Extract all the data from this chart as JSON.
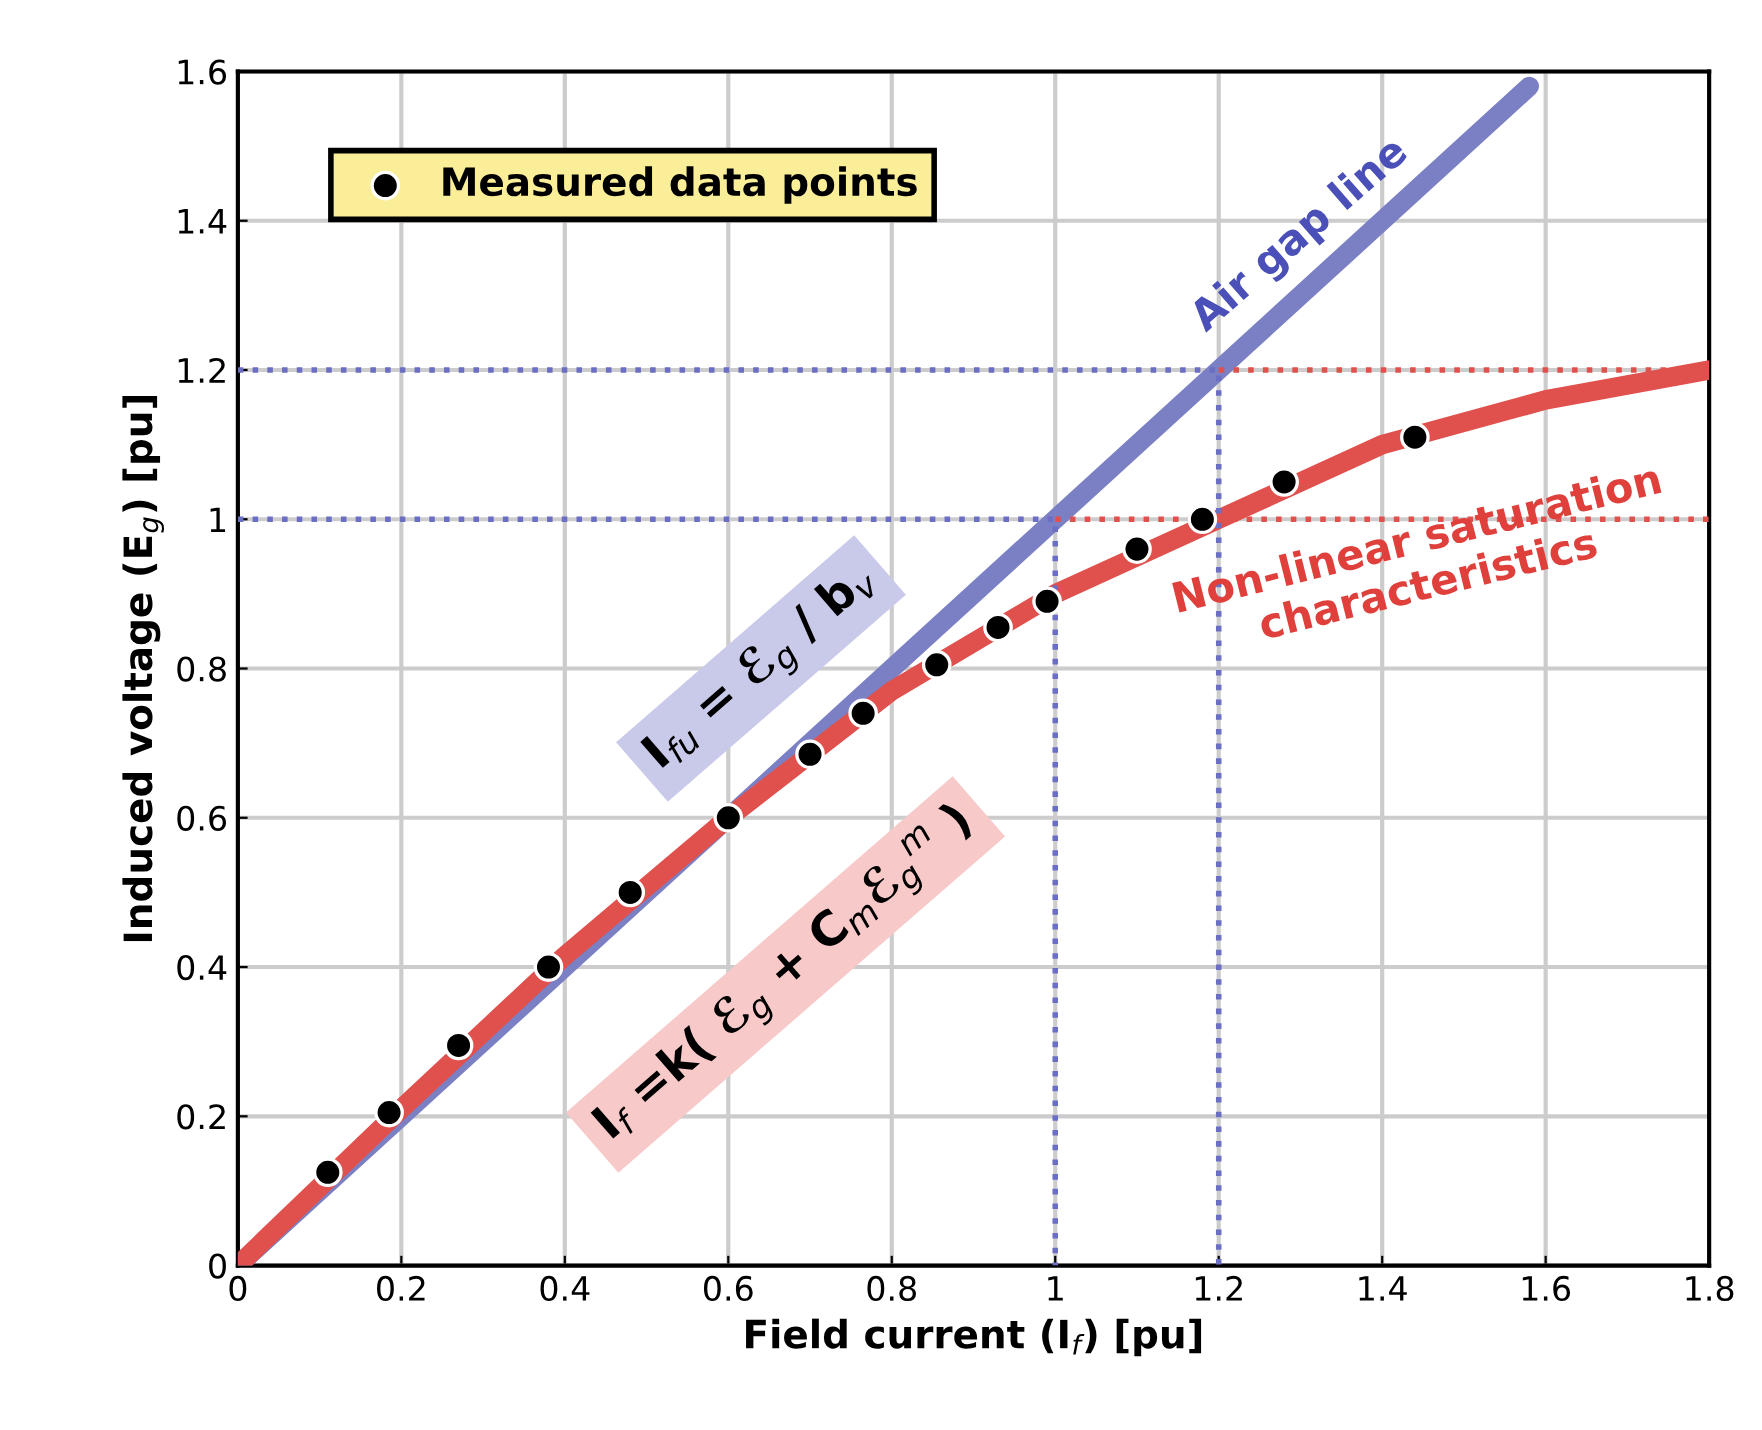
{
  "chart_data": {
    "type": "line",
    "xlabel": "Field current (I$_{f}$) [pu]",
    "ylabel": "Induced voltage (E$_{g}$) [pu]",
    "xlim": [
      0,
      1.8
    ],
    "ylim": [
      0,
      1.6
    ],
    "xticks": [
      0,
      0.2,
      0.4,
      0.6,
      0.8,
      1,
      1.2,
      1.4,
      1.6,
      1.8
    ],
    "yticks": [
      0,
      0.2,
      0.4,
      0.6,
      0.8,
      1,
      1.2,
      1.4,
      1.6
    ],
    "grid": true,
    "legend": "top left",
    "series": [
      {
        "color": "#7b80c4",
        "x": [
          0,
          1.58
        ],
        "values": [
          0,
          1.58
        ],
        "line_style": "solid"
      },
      {
        "color": "#e0504c",
        "x": [
          0,
          0.2,
          0.4,
          0.6,
          0.8,
          1.0,
          1.2,
          1.4,
          1.6,
          1.8
        ],
        "values": [
          0,
          0.21,
          0.415,
          0.6,
          0.77,
          0.9,
          1.0,
          1.1,
          1.16,
          1.2
        ],
        "line_style": "solid"
      },
      {
        "color": "#6a6fc4",
        "x": [
          0,
          1,
          1
        ],
        "values": [
          1,
          1,
          0
        ],
        "line_style": "dotted"
      },
      {
        "color": "#6a6fc4",
        "x": [
          0,
          1.2,
          1.2
        ],
        "values": [
          1.2,
          1.2,
          0
        ],
        "line_style": "dotted"
      },
      {
        "color": "#e0504c",
        "x": [
          1,
          1.8
        ],
        "values": [
          1,
          1
        ],
        "line_style": "dotted"
      },
      {
        "color": "#e0504c",
        "x": [
          1.2,
          1.8
        ],
        "values": [
          1.2,
          1.2
        ],
        "line_style": "dotted"
      },
      {
        "type": "scatter",
        "name": "Measured data points",
        "color": "#000000",
        "marker": "circle",
        "x": [
          0.11,
          0.185,
          0.27,
          0.38,
          0.48,
          0.6,
          0.7,
          0.765,
          0.855,
          0.93,
          0.99,
          1.1,
          1.18,
          1.28,
          1.44
        ],
        "values": [
          0.125,
          0.205,
          0.295,
          0.4,
          0.5,
          0.6,
          0.685,
          0.74,
          0.805,
          0.855,
          0.89,
          0.96,
          1.0,
          1.05,
          1.11
        ]
      }
    ],
    "annotations": [
      "Air gap line",
      "Non-linear saturation characteristics",
      "I$_{fu}$ = ℰ$_{g}$ / b$_{v}$",
      "I$_{f}$ =k( ℰ$_{g}$ + C$_{m}$ℰ$_{g}$$^{m}$ )"
    ]
  }
}
